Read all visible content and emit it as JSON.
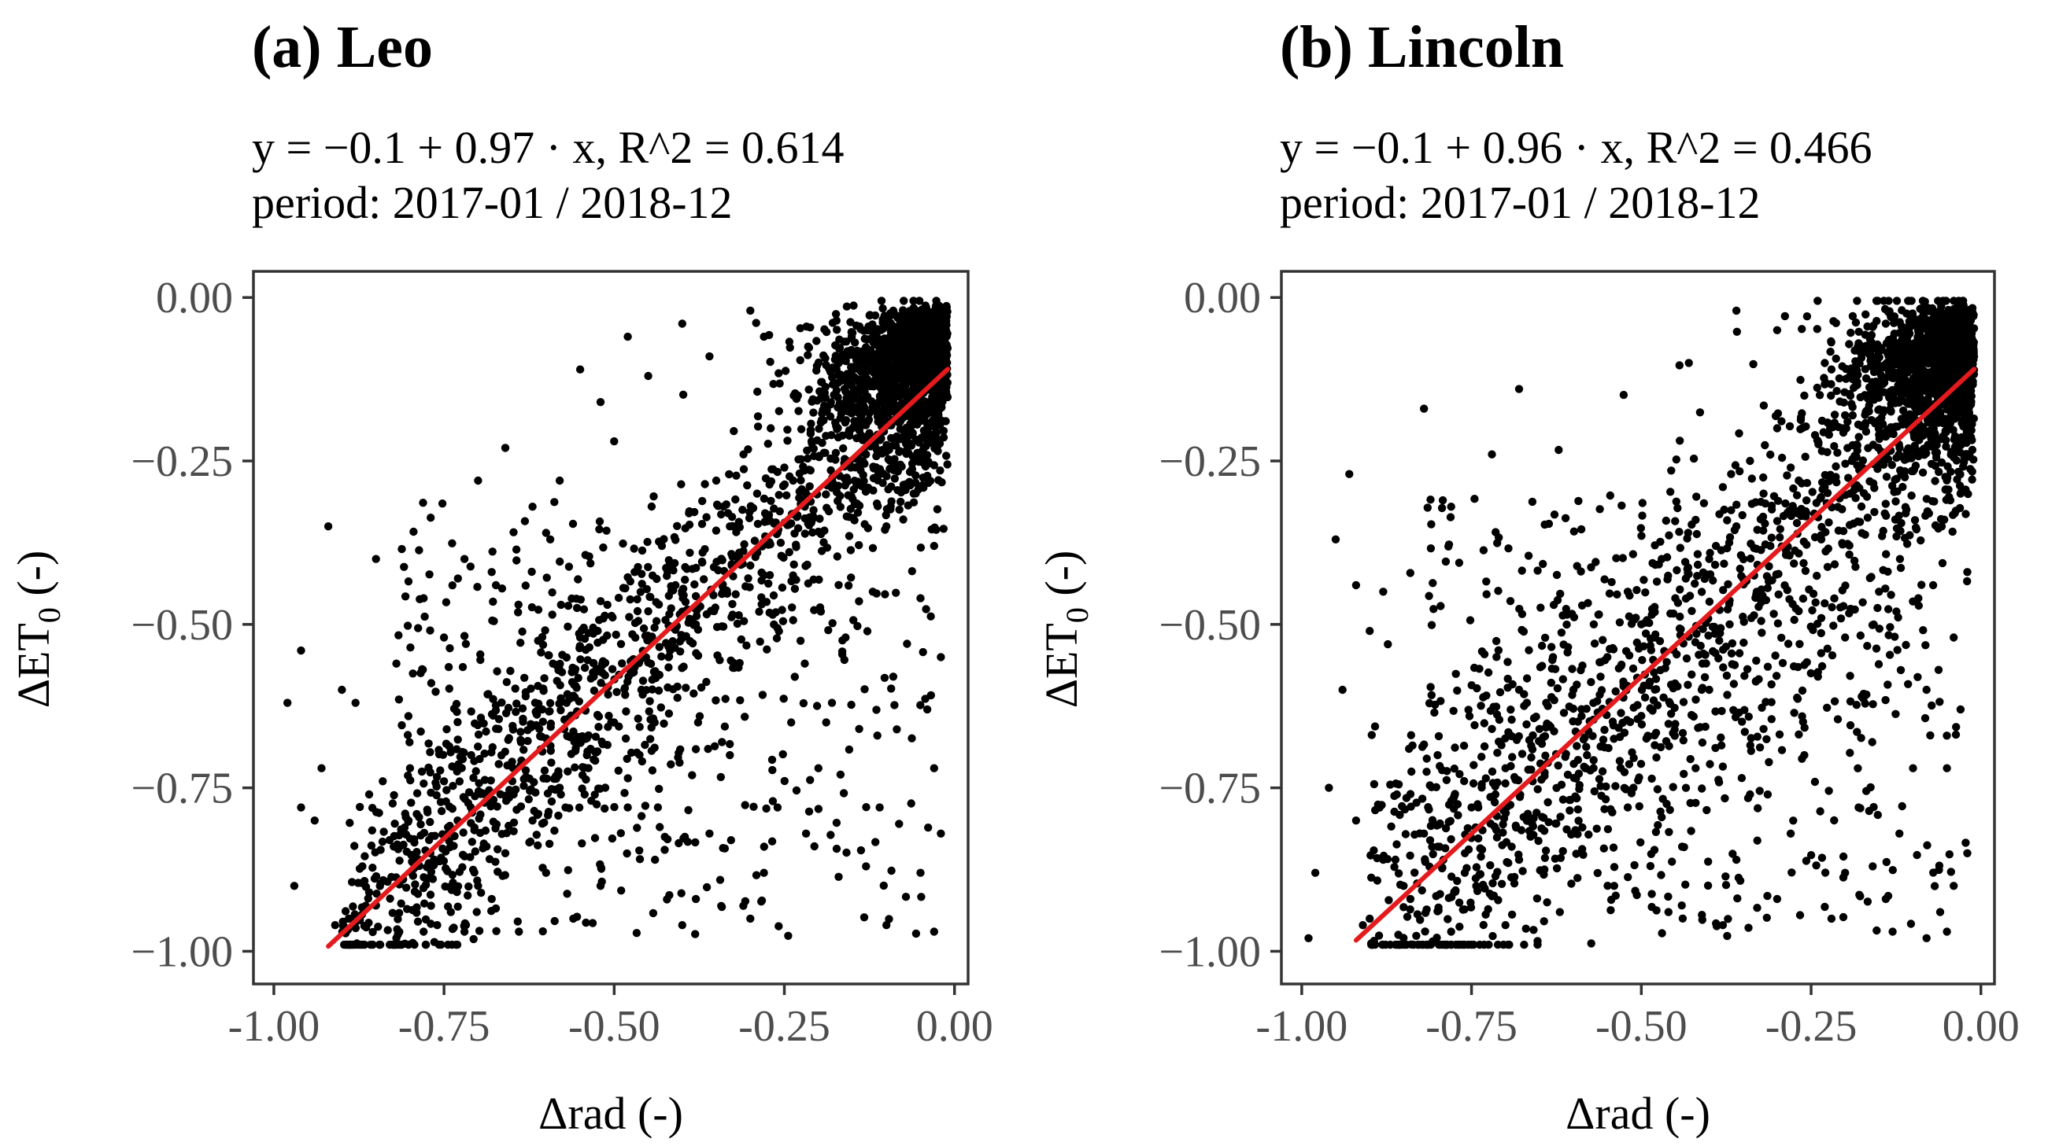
{
  "chart_data": [
    {
      "type": "scatter",
      "title": "(a) Leo",
      "subtitle_line1": "y = −0.1 + 0.97 · x,  R^2 = 0.614",
      "subtitle_line2": "period: 2017-01 / 2018-12",
      "xlabel": "Δrad (-)",
      "ylabel": "ΔET",
      "ylabel_sub": "0",
      "ylabel_suffix": " (-)",
      "xlim": [
        -1.03,
        0.02
      ],
      "ylim": [
        -1.05,
        0.04
      ],
      "xticks": [
        -1.0,
        -0.75,
        -0.5,
        -0.25,
        0.0
      ],
      "xtick_labels": [
        "-1.00",
        "-0.75",
        "-0.50",
        "-0.25",
        "0.00"
      ],
      "yticks": [
        0.0,
        -0.25,
        -0.5,
        -0.75,
        -1.0
      ],
      "ytick_labels": [
        "0.00",
        "−0.25",
        "−0.50",
        "−0.75",
        "−1.00"
      ],
      "regression": {
        "intercept": -0.1,
        "slope": 0.97,
        "r2": 0.614,
        "x_range": [
          -0.92,
          -0.01
        ]
      },
      "points": [
        [
          -0.02,
          -0.02
        ],
        [
          -0.03,
          -0.05
        ],
        [
          -0.05,
          -0.03
        ],
        [
          -0.04,
          -0.08
        ],
        [
          -0.07,
          -0.06
        ],
        [
          -0.09,
          -0.02
        ],
        [
          -0.06,
          -0.12
        ],
        [
          -0.1,
          -0.09
        ],
        [
          -0.12,
          -0.05
        ],
        [
          -0.14,
          -0.13
        ],
        [
          -0.11,
          -0.16
        ],
        [
          -0.08,
          -0.18
        ],
        [
          -0.15,
          -0.2
        ],
        [
          -0.17,
          -0.1
        ],
        [
          -0.19,
          -0.17
        ],
        [
          -0.13,
          -0.24
        ],
        [
          -0.21,
          -0.22
        ],
        [
          -0.23,
          -0.15
        ],
        [
          -0.18,
          -0.28
        ],
        [
          -0.25,
          -0.26
        ],
        [
          -0.27,
          -0.2
        ],
        [
          -0.22,
          -0.32
        ],
        [
          -0.29,
          -0.3
        ],
        [
          -0.31,
          -0.24
        ],
        [
          -0.26,
          -0.36
        ],
        [
          -0.33,
          -0.35
        ],
        [
          -0.35,
          -0.28
        ],
        [
          -0.3,
          -0.41
        ],
        [
          -0.37,
          -0.39
        ],
        [
          -0.39,
          -0.33
        ],
        [
          -0.34,
          -0.45
        ],
        [
          -0.41,
          -0.44
        ],
        [
          -0.43,
          -0.38
        ],
        [
          -0.38,
          -0.5
        ],
        [
          -0.45,
          -0.48
        ],
        [
          -0.47,
          -0.42
        ],
        [
          -0.42,
          -0.55
        ],
        [
          -0.49,
          -0.53
        ],
        [
          -0.51,
          -0.47
        ],
        [
          -0.46,
          -0.6
        ],
        [
          -0.53,
          -0.58
        ],
        [
          -0.55,
          -0.52
        ],
        [
          -0.5,
          -0.65
        ],
        [
          -0.57,
          -0.62
        ],
        [
          -0.59,
          -0.56
        ],
        [
          -0.54,
          -0.7
        ],
        [
          -0.61,
          -0.66
        ],
        [
          -0.63,
          -0.61
        ],
        [
          -0.58,
          -0.75
        ],
        [
          -0.65,
          -0.71
        ],
        [
          -0.67,
          -0.66
        ],
        [
          -0.62,
          -0.8
        ],
        [
          -0.69,
          -0.76
        ],
        [
          -0.71,
          -0.7
        ],
        [
          -0.66,
          -0.85
        ],
        [
          -0.73,
          -0.8
        ],
        [
          -0.75,
          -0.74
        ],
        [
          -0.7,
          -0.9
        ],
        [
          -0.77,
          -0.85
        ],
        [
          -0.79,
          -0.79
        ],
        [
          -0.74,
          -0.94
        ],
        [
          -0.81,
          -0.89
        ],
        [
          -0.83,
          -0.83
        ],
        [
          -0.78,
          -0.97
        ],
        [
          -0.85,
          -0.93
        ],
        [
          -0.87,
          -0.87
        ],
        [
          -0.82,
          -0.98
        ],
        [
          -0.89,
          -0.95
        ],
        [
          -0.91,
          -0.96
        ],
        [
          -0.86,
          -0.91
        ],
        [
          -0.04,
          -0.22
        ],
        [
          -0.06,
          -0.3
        ],
        [
          -0.03,
          -0.38
        ],
        [
          -0.05,
          -0.46
        ],
        [
          -0.02,
          -0.55
        ],
        [
          -0.04,
          -0.63
        ],
        [
          -0.03,
          -0.72
        ],
        [
          -0.02,
          -0.82
        ],
        [
          -0.05,
          -0.88
        ],
        [
          -0.03,
          -0.97
        ],
        [
          -0.1,
          -0.35
        ],
        [
          -0.12,
          -0.45
        ],
        [
          -0.09,
          -0.58
        ],
        [
          -0.14,
          -0.66
        ],
        [
          -0.11,
          -0.78
        ],
        [
          -0.13,
          -0.87
        ],
        [
          -0.1,
          -0.96
        ],
        [
          -0.16,
          -0.52
        ],
        [
          -0.18,
          -0.62
        ],
        [
          -0.2,
          -0.72
        ],
        [
          -0.22,
          -0.56
        ],
        [
          -0.24,
          -0.65
        ],
        [
          -0.26,
          -0.78
        ],
        [
          -0.28,
          -0.88
        ],
        [
          -0.3,
          -0.95
        ],
        [
          -0.33,
          -0.7
        ],
        [
          -0.36,
          -0.82
        ],
        [
          -0.38,
          -0.92
        ],
        [
          -0.4,
          -0.96
        ],
        [
          -0.44,
          -0.86
        ],
        [
          -0.48,
          -0.78
        ],
        [
          -0.52,
          -0.9
        ],
        [
          -0.56,
          -0.95
        ],
        [
          -0.6,
          -0.88
        ],
        [
          -0.64,
          -0.97
        ],
        [
          -0.68,
          -0.92
        ],
        [
          -0.72,
          -0.97
        ],
        [
          -0.76,
          -0.96
        ],
        [
          -0.8,
          -0.72
        ],
        [
          -0.84,
          -0.74
        ],
        [
          -0.4,
          -0.04
        ],
        [
          -0.3,
          -0.02
        ],
        [
          -0.28,
          -0.06
        ],
        [
          -0.36,
          -0.09
        ],
        [
          -0.45,
          -0.12
        ],
        [
          -0.52,
          -0.16
        ],
        [
          -0.5,
          -0.22
        ],
        [
          -0.58,
          -0.28
        ],
        [
          -0.6,
          -0.36
        ],
        [
          -0.68,
          -0.42
        ],
        [
          -0.75,
          -0.52
        ],
        [
          -0.82,
          -0.56
        ],
        [
          -0.88,
          -0.62
        ],
        [
          -0.93,
          -0.72
        ],
        [
          -0.96,
          -0.78
        ],
        [
          -0.98,
          -0.62
        ],
        [
          -0.96,
          -0.54
        ],
        [
          -0.72,
          -0.4
        ],
        [
          -0.78,
          -0.46
        ],
        [
          -0.66,
          -0.23
        ],
        [
          -0.7,
          -0.28
        ],
        [
          -0.55,
          -0.11
        ],
        [
          -0.48,
          -0.06
        ],
        [
          -0.62,
          -0.32
        ],
        [
          -0.9,
          -0.6
        ],
        [
          -0.94,
          -0.8
        ],
        [
          -0.97,
          -0.9
        ],
        [
          -0.85,
          -0.4
        ],
        [
          -0.92,
          -0.35
        ],
        [
          -0.86,
          -0.76
        ]
      ]
    },
    {
      "type": "scatter",
      "title": "(b) Lincoln",
      "subtitle_line1": "y = −0.1 + 0.96 · x,  R^2 = 0.466",
      "subtitle_line2": "period: 2017-01 / 2018-12",
      "xlabel": "Δrad (-)",
      "ylabel": "ΔET",
      "ylabel_sub": "0",
      "ylabel_suffix": " (-)",
      "xlim": [
        -1.03,
        0.02
      ],
      "ylim": [
        -1.05,
        0.04
      ],
      "xticks": [
        -1.0,
        -0.75,
        -0.5,
        -0.25,
        0.0
      ],
      "xtick_labels": [
        "-1.00",
        "-0.75",
        "-0.50",
        "-0.25",
        "0.00"
      ],
      "yticks": [
        0.0,
        -0.25,
        -0.5,
        -0.75,
        -1.0
      ],
      "ytick_labels": [
        "0.00",
        "−0.25",
        "−0.50",
        "−0.75",
        "−1.00"
      ],
      "regression": {
        "intercept": -0.1,
        "slope": 0.96,
        "r2": 0.466,
        "x_range": [
          -0.92,
          -0.01
        ]
      },
      "points": [
        [
          -0.02,
          -0.02
        ],
        [
          -0.04,
          -0.05
        ],
        [
          -0.06,
          -0.02
        ],
        [
          -0.03,
          -0.09
        ],
        [
          -0.08,
          -0.07
        ],
        [
          -0.1,
          -0.03
        ],
        [
          -0.07,
          -0.13
        ],
        [
          -0.12,
          -0.1
        ],
        [
          -0.14,
          -0.04
        ],
        [
          -0.11,
          -0.16
        ],
        [
          -0.16,
          -0.14
        ],
        [
          -0.18,
          -0.07
        ],
        [
          -0.15,
          -0.21
        ],
        [
          -0.2,
          -0.18
        ],
        [
          -0.22,
          -0.11
        ],
        [
          -0.19,
          -0.25
        ],
        [
          -0.24,
          -0.22
        ],
        [
          -0.26,
          -0.15
        ],
        [
          -0.23,
          -0.29
        ],
        [
          -0.28,
          -0.26
        ],
        [
          -0.3,
          -0.2
        ],
        [
          -0.27,
          -0.33
        ],
        [
          -0.32,
          -0.3
        ],
        [
          -0.34,
          -0.25
        ],
        [
          -0.31,
          -0.38
        ],
        [
          -0.36,
          -0.35
        ],
        [
          -0.38,
          -0.29
        ],
        [
          -0.35,
          -0.43
        ],
        [
          -0.4,
          -0.4
        ],
        [
          -0.42,
          -0.34
        ],
        [
          -0.03,
          -0.3
        ],
        [
          -0.02,
          -0.42
        ],
        [
          -0.04,
          -0.52
        ],
        [
          -0.03,
          -0.63
        ],
        [
          -0.05,
          -0.72
        ],
        [
          -0.02,
          -0.85
        ],
        [
          -0.06,
          -0.94
        ],
        [
          -0.08,
          -0.6
        ],
        [
          -0.1,
          -0.72
        ],
        [
          -0.12,
          -0.82
        ],
        [
          -0.14,
          -0.92
        ],
        [
          -0.16,
          -0.68
        ],
        [
          -0.18,
          -0.78
        ],
        [
          -0.2,
          -0.88
        ],
        [
          -0.22,
          -0.95
        ],
        [
          -0.24,
          -0.58
        ],
        [
          -0.26,
          -0.7
        ],
        [
          -0.28,
          -0.82
        ],
        [
          -0.3,
          -0.92
        ],
        [
          -0.32,
          -0.66
        ],
        [
          -0.34,
          -0.76
        ],
        [
          -0.36,
          -0.86
        ],
        [
          -0.38,
          -0.96
        ],
        [
          -0.4,
          -0.6
        ],
        [
          -0.42,
          -0.72
        ],
        [
          -0.44,
          -0.84
        ],
        [
          -0.46,
          -0.94
        ],
        [
          -0.48,
          -0.52
        ],
        [
          -0.5,
          -0.64
        ],
        [
          -0.52,
          -0.78
        ],
        [
          -0.54,
          -0.9
        ],
        [
          -0.56,
          -0.58
        ],
        [
          -0.58,
          -0.7
        ],
        [
          -0.6,
          -0.82
        ],
        [
          -0.62,
          -0.94
        ],
        [
          -0.64,
          -0.62
        ],
        [
          -0.66,
          -0.74
        ],
        [
          -0.68,
          -0.86
        ],
        [
          -0.7,
          -0.96
        ],
        [
          -0.72,
          -0.66
        ],
        [
          -0.74,
          -0.78
        ],
        [
          -0.76,
          -0.88
        ],
        [
          -0.78,
          -0.97
        ],
        [
          -0.8,
          -0.7
        ],
        [
          -0.82,
          -0.82
        ],
        [
          -0.84,
          -0.92
        ],
        [
          -0.86,
          -0.76
        ],
        [
          -0.88,
          -0.86
        ],
        [
          -0.9,
          -0.95
        ],
        [
          -0.92,
          -0.8
        ],
        [
          -0.45,
          -0.46
        ],
        [
          -0.5,
          -0.5
        ],
        [
          -0.55,
          -0.55
        ],
        [
          -0.6,
          -0.6
        ],
        [
          -0.65,
          -0.66
        ],
        [
          -0.7,
          -0.72
        ],
        [
          -0.75,
          -0.78
        ],
        [
          -0.8,
          -0.84
        ],
        [
          -0.85,
          -0.9
        ],
        [
          -0.91,
          -0.96
        ],
        [
          -0.33,
          -0.45
        ],
        [
          -0.37,
          -0.5
        ],
        [
          -0.41,
          -0.56
        ],
        [
          -0.47,
          -0.4
        ],
        [
          -0.52,
          -0.45
        ],
        [
          -0.57,
          -0.5
        ],
        [
          -0.63,
          -0.55
        ],
        [
          -0.68,
          -0.6
        ],
        [
          -0.15,
          -0.45
        ],
        [
          -0.2,
          -0.52
        ],
        [
          -0.36,
          -0.02
        ],
        [
          -0.3,
          -0.05
        ],
        [
          -0.43,
          -0.1
        ],
        [
          -0.68,
          -0.14
        ],
        [
          -0.72,
          -0.24
        ],
        [
          -0.78,
          -0.32
        ],
        [
          -0.82,
          -0.17
        ],
        [
          -0.93,
          -0.27
        ],
        [
          -0.95,
          -0.37
        ],
        [
          -0.92,
          -0.44
        ],
        [
          -0.9,
          -0.51
        ],
        [
          -0.94,
          -0.6
        ],
        [
          -0.96,
          -0.75
        ],
        [
          -0.98,
          -0.88
        ],
        [
          -0.99,
          -0.98
        ],
        [
          -0.05,
          -0.97
        ],
        [
          -0.04,
          -0.9
        ],
        [
          -0.08,
          -0.98
        ],
        [
          -0.13,
          -0.97
        ],
        [
          -0.88,
          -0.45
        ]
      ]
    }
  ]
}
